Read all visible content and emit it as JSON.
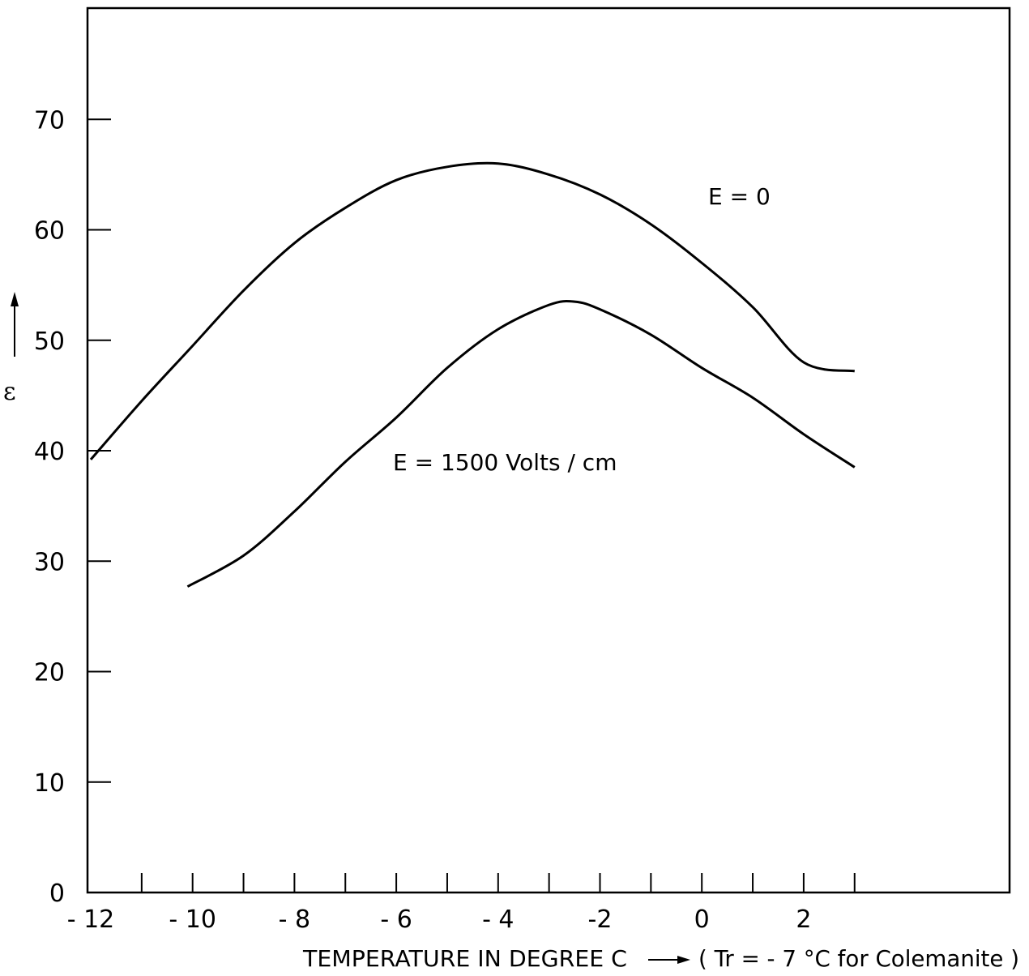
{
  "chart_data": {
    "type": "line",
    "title": "",
    "xlabel": "TEMPERATURE IN DEGREE  C",
    "xlabel_note": "( Tr = - 7 °C for Colemanite )",
    "ylabel": "ε",
    "xlim": [
      -12,
      6
    ],
    "ylim": [
      0,
      80
    ],
    "x_ticks": [
      -12,
      -11,
      -10,
      -9,
      -8,
      -7,
      -6,
      -5,
      -4,
      -3,
      -2,
      -1,
      0,
      1,
      2,
      3
    ],
    "x_tick_labels": [
      {
        "value": -12,
        "label": "- 12"
      },
      {
        "value": -10,
        "label": "- 10"
      },
      {
        "value": -8,
        "label": "- 8"
      },
      {
        "value": -6,
        "label": "- 6"
      },
      {
        "value": -4,
        "label": "- 4"
      },
      {
        "value": -2,
        "label": "-2"
      },
      {
        "value": 0,
        "label": "0"
      },
      {
        "value": 2,
        "label": "2"
      }
    ],
    "y_ticks": [
      0,
      10,
      20,
      30,
      40,
      50,
      60,
      70
    ],
    "y_tick_labels": [
      "0",
      "10",
      "20",
      "30",
      "40",
      "50",
      "60",
      "70"
    ],
    "grid": false,
    "series": [
      {
        "name": "E = 0",
        "x": [
          -12,
          -11,
          -10,
          -9,
          -8,
          -7,
          -6,
          -5,
          -4,
          -3,
          -2,
          -1,
          0,
          1,
          2,
          3
        ],
        "y": [
          39.2,
          44.5,
          49.5,
          54.5,
          58.8,
          62.0,
          64.5,
          65.7,
          66.0,
          65.0,
          63.2,
          60.5,
          57.0,
          53.0,
          48.0,
          47.2
        ]
      },
      {
        "name": "E = 1500  Volts / cm",
        "x": [
          -10.1,
          -9,
          -8,
          -7,
          -6,
          -5,
          -4,
          -3,
          -2.5,
          -2,
          -1,
          0,
          1,
          2,
          3
        ],
        "y": [
          27.7,
          30.5,
          34.5,
          39.0,
          43.0,
          47.5,
          51.0,
          53.2,
          53.5,
          52.8,
          50.5,
          47.5,
          44.8,
          41.5,
          38.5
        ]
      }
    ]
  }
}
